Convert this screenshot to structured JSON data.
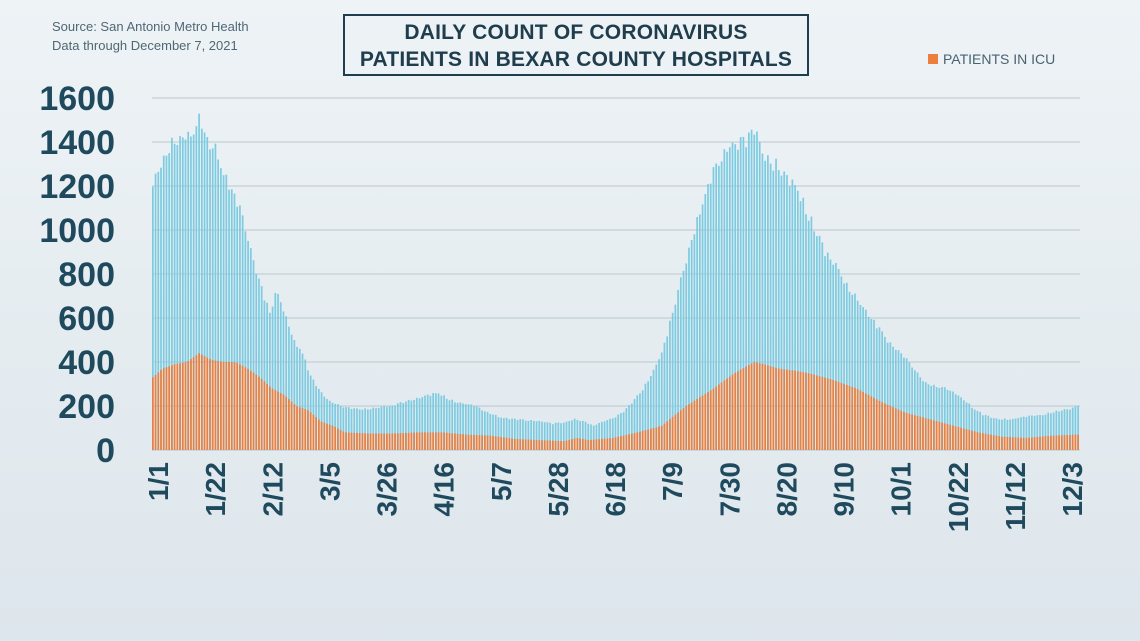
{
  "source": {
    "line1": "Source: San Antonio Metro Health",
    "line2": "Data through December 7, 2021"
  },
  "title": {
    "line1": "DAILY COUNT OF CORONAVIRUS",
    "line2": "PATIENTS IN BEXAR COUNTY HOSPITALS"
  },
  "legend": {
    "icu_label": "PATIENTS IN ICU"
  },
  "colors": {
    "total": "#7ccbe1",
    "icu": "#ec7f3e",
    "text": "#1f4a5d"
  },
  "chart_data": {
    "type": "bar",
    "title": "DAILY COUNT OF CORONAVIRUS PATIENTS IN BEXAR COUNTY HOSPITALS",
    "ylim": [
      0,
      1600
    ],
    "yticks": [
      0,
      200,
      400,
      600,
      800,
      1000,
      1200,
      1400,
      1600
    ],
    "grid": true,
    "legend_position": "top-right",
    "x_tick_labels": [
      "1/1",
      "1/22",
      "2/12",
      "3/5",
      "3/26",
      "4/16",
      "5/7",
      "5/28",
      "6/18",
      "7/9",
      "7/30",
      "8/20",
      "9/10",
      "10/1",
      "10/22",
      "11/12",
      "12/3"
    ],
    "series": [
      {
        "key": "total",
        "keypoints": [
          [
            1,
            1170
          ],
          [
            2,
            1240
          ],
          [
            4,
            1290
          ],
          [
            7,
            1360
          ],
          [
            10,
            1410
          ],
          [
            13,
            1420
          ],
          [
            16,
            1410
          ],
          [
            18,
            1440
          ],
          [
            20,
            1500
          ],
          [
            22,
            1470
          ],
          [
            24,
            1400
          ],
          [
            27,
            1380
          ],
          [
            30,
            1250
          ],
          [
            33,
            1180
          ],
          [
            36,
            1120
          ],
          [
            40,
            960
          ],
          [
            44,
            800
          ],
          [
            47,
            690
          ],
          [
            49,
            620
          ],
          [
            51,
            700
          ],
          [
            53,
            690
          ],
          [
            56,
            600
          ],
          [
            59,
            500
          ],
          [
            62,
            450
          ],
          [
            66,
            330
          ],
          [
            70,
            260
          ],
          [
            74,
            220
          ],
          [
            78,
            200
          ],
          [
            82,
            190
          ],
          [
            86,
            185
          ],
          [
            90,
            190
          ],
          [
            95,
            195
          ],
          [
            99,
            200
          ],
          [
            103,
            215
          ],
          [
            107,
            230
          ],
          [
            111,
            240
          ],
          [
            115,
            250
          ],
          [
            118,
            260
          ],
          [
            121,
            240
          ],
          [
            125,
            220
          ],
          [
            129,
            210
          ],
          [
            133,
            200
          ],
          [
            137,
            180
          ],
          [
            141,
            160
          ],
          [
            145,
            145
          ],
          [
            150,
            140
          ],
          [
            155,
            135
          ],
          [
            160,
            130
          ],
          [
            165,
            120
          ],
          [
            170,
            125
          ],
          [
            174,
            140
          ],
          [
            178,
            130
          ],
          [
            182,
            110
          ],
          [
            186,
            130
          ],
          [
            190,
            145
          ],
          [
            194,
            170
          ],
          [
            198,
            220
          ],
          [
            202,
            270
          ],
          [
            206,
            350
          ],
          [
            210,
            440
          ],
          [
            214,
            600
          ],
          [
            218,
            780
          ],
          [
            222,
            950
          ],
          [
            226,
            1100
          ],
          [
            230,
            1230
          ],
          [
            234,
            1330
          ],
          [
            238,
            1380
          ],
          [
            242,
            1400
          ],
          [
            246,
            1410
          ],
          [
            248,
            1450
          ],
          [
            250,
            1400
          ],
          [
            253,
            1330
          ],
          [
            256,
            1300
          ],
          [
            259,
            1280
          ],
          [
            262,
            1230
          ],
          [
            266,
            1180
          ],
          [
            270,
            1070
          ],
          [
            274,
            980
          ],
          [
            278,
            880
          ],
          [
            282,
            830
          ],
          [
            286,
            750
          ],
          [
            290,
            700
          ],
          [
            294,
            620
          ],
          [
            298,
            570
          ],
          [
            302,
            510
          ],
          [
            306,
            460
          ],
          [
            310,
            420
          ],
          [
            314,
            360
          ],
          [
            318,
            310
          ],
          [
            322,
            290
          ],
          [
            326,
            280
          ],
          [
            330,
            260
          ],
          [
            334,
            230
          ],
          [
            338,
            190
          ],
          [
            342,
            160
          ],
          [
            346,
            145
          ],
          [
            350,
            140
          ],
          [
            354,
            140
          ],
          [
            358,
            150
          ],
          [
            362,
            155
          ],
          [
            366,
            160
          ],
          [
            370,
            170
          ],
          [
            374,
            180
          ],
          [
            378,
            185
          ],
          [
            381,
            205
          ]
        ]
      },
      {
        "key": "icu",
        "name": "PATIENTS IN ICU",
        "keypoints": [
          [
            1,
            330
          ],
          [
            5,
            370
          ],
          [
            10,
            390
          ],
          [
            15,
            400
          ],
          [
            20,
            440
          ],
          [
            25,
            410
          ],
          [
            30,
            400
          ],
          [
            35,
            400
          ],
          [
            40,
            370
          ],
          [
            45,
            330
          ],
          [
            50,
            280
          ],
          [
            55,
            250
          ],
          [
            60,
            200
          ],
          [
            65,
            180
          ],
          [
            70,
            130
          ],
          [
            75,
            110
          ],
          [
            80,
            80
          ],
          [
            90,
            75
          ],
          [
            100,
            75
          ],
          [
            110,
            80
          ],
          [
            120,
            80
          ],
          [
            130,
            70
          ],
          [
            140,
            65
          ],
          [
            150,
            50
          ],
          [
            160,
            45
          ],
          [
            170,
            40
          ],
          [
            175,
            55
          ],
          [
            180,
            45
          ],
          [
            190,
            55
          ],
          [
            200,
            80
          ],
          [
            210,
            110
          ],
          [
            220,
            200
          ],
          [
            230,
            270
          ],
          [
            240,
            350
          ],
          [
            248,
            400
          ],
          [
            252,
            390
          ],
          [
            258,
            370
          ],
          [
            265,
            360
          ],
          [
            270,
            350
          ],
          [
            280,
            320
          ],
          [
            290,
            280
          ],
          [
            300,
            220
          ],
          [
            310,
            170
          ],
          [
            320,
            140
          ],
          [
            330,
            110
          ],
          [
            340,
            80
          ],
          [
            350,
            60
          ],
          [
            360,
            55
          ],
          [
            370,
            65
          ],
          [
            381,
            70
          ]
        ]
      }
    ]
  }
}
